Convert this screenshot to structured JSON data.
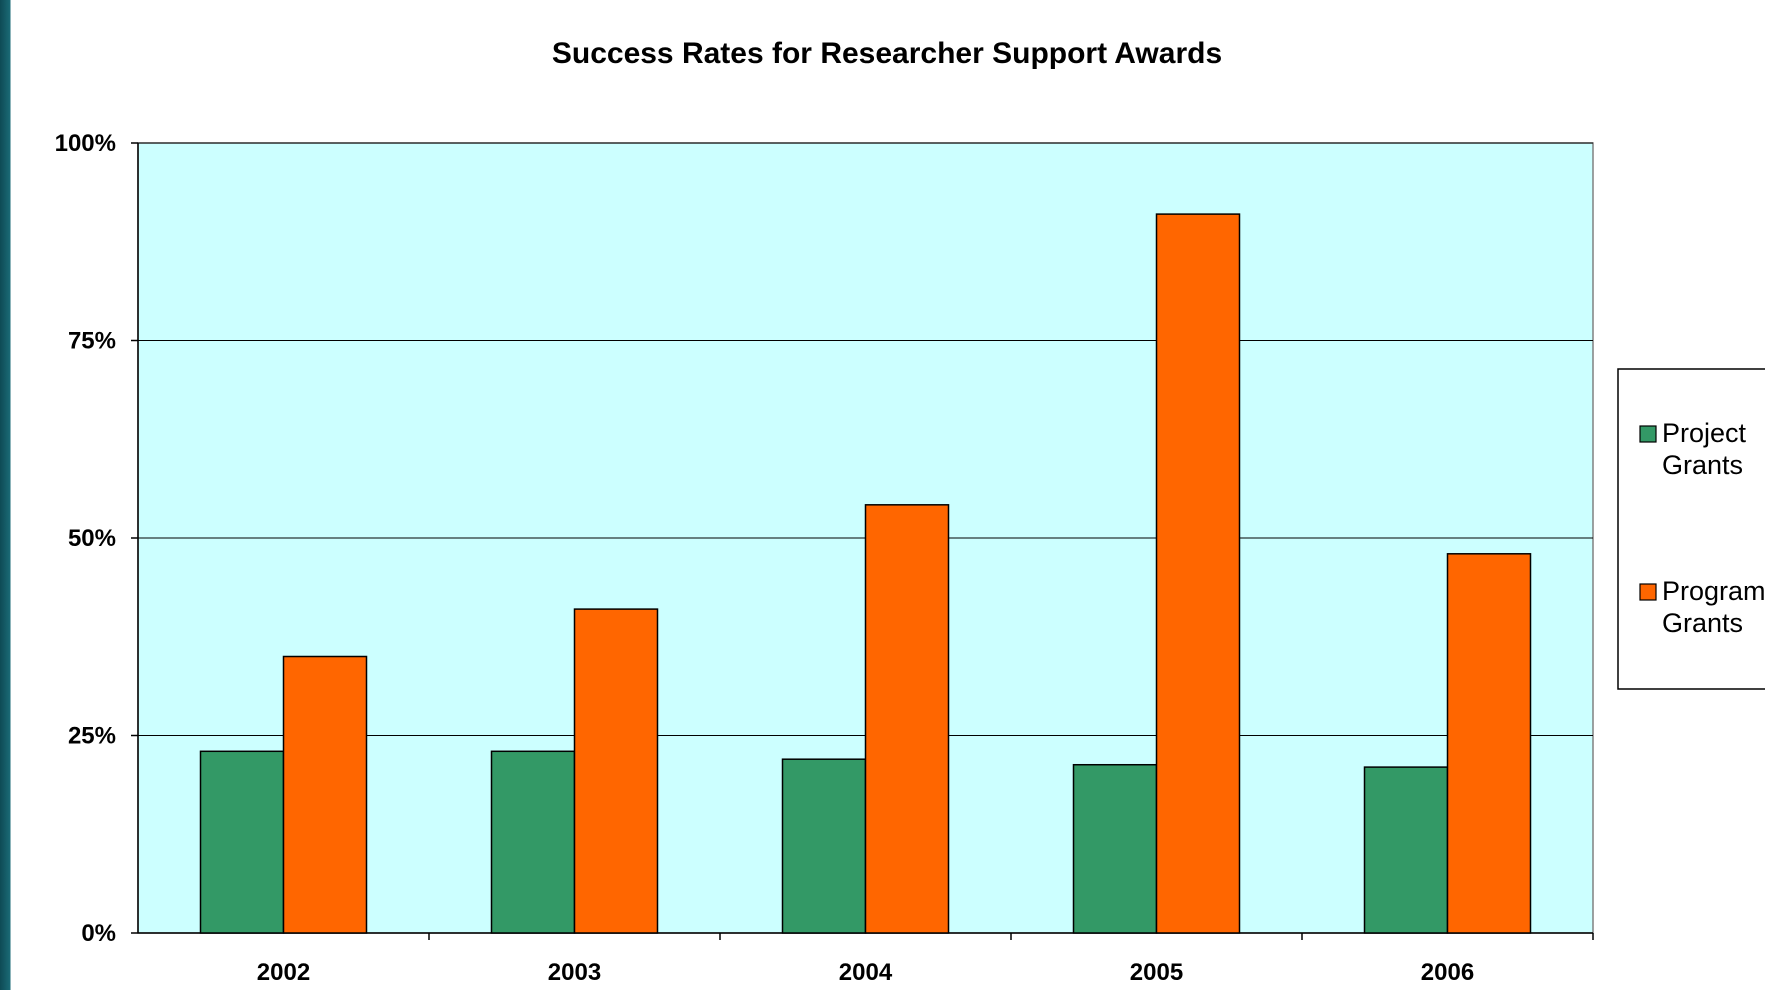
{
  "chart_data": {
    "type": "bar",
    "title": "Success Rates for Researcher Support Awards",
    "xlabel": "",
    "ylabel": "",
    "categories": [
      "2002",
      "2003",
      "2004",
      "2005",
      "2006"
    ],
    "series": [
      {
        "name": "Project Grants",
        "values": [
          23,
          23,
          22,
          21.3,
          21
        ]
      },
      {
        "name": "Program Grants",
        "values": [
          35,
          41,
          54.2,
          91,
          48
        ]
      }
    ],
    "ylim": [
      0,
      100
    ],
    "yticks": [
      0,
      25,
      50,
      75,
      100
    ],
    "ytick_labels": [
      "0%",
      "25%",
      "50%",
      "75%",
      "100%"
    ],
    "grid": true,
    "legend_position": "right",
    "plot_background": "#ccffff",
    "series_colors": [
      "#339966",
      "#ff6600"
    ]
  }
}
